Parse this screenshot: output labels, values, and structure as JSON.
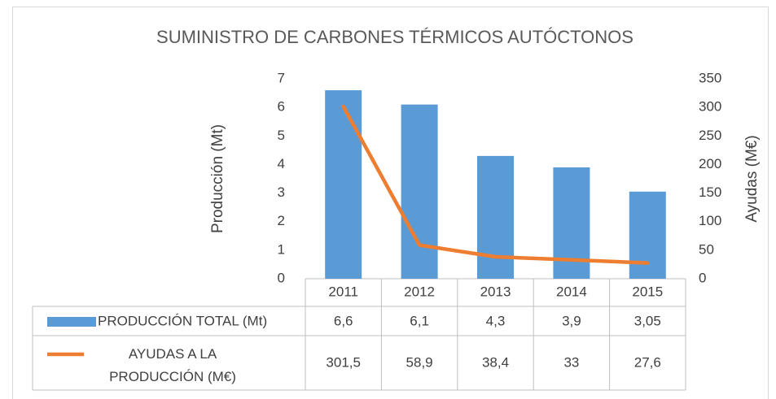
{
  "chart_data": {
    "type": "bar",
    "title": "SUMINISTRO DE CARBONES TÉRMICOS AUTÓCTONOS",
    "y_label": "Producción (Mt)",
    "y2_label": "Ayudas (M€)",
    "categories": [
      "2011",
      "2012",
      "2013",
      "2014",
      "2015"
    ],
    "series": [
      {
        "name": "PRODUCCIÓN TOTAL (Mt)",
        "type": "bar",
        "color": "#5b9bd5",
        "values": [
          6.6,
          6.1,
          4.3,
          3.9,
          3.05
        ],
        "value_labels": [
          "6,6",
          "6,1",
          "4,3",
          "3,9",
          "3,05"
        ]
      },
      {
        "name": "AYUDAS A LA PRODUCCIÓN (M€)",
        "type": "line",
        "axis": "y2",
        "color": "#ed7d31",
        "values": [
          301.5,
          58.9,
          38.4,
          33,
          27.6
        ],
        "value_labels": [
          "301,5",
          "58,9",
          "38,4",
          "33",
          "27,6"
        ]
      }
    ],
    "ylim": [
      0,
      7
    ],
    "yticks": [
      0,
      1,
      2,
      3,
      4,
      5,
      6,
      7
    ],
    "y2lim": [
      0,
      350
    ],
    "y2ticks": [
      0,
      50,
      100,
      150,
      200,
      250,
      300,
      350
    ],
    "data_table": true
  }
}
